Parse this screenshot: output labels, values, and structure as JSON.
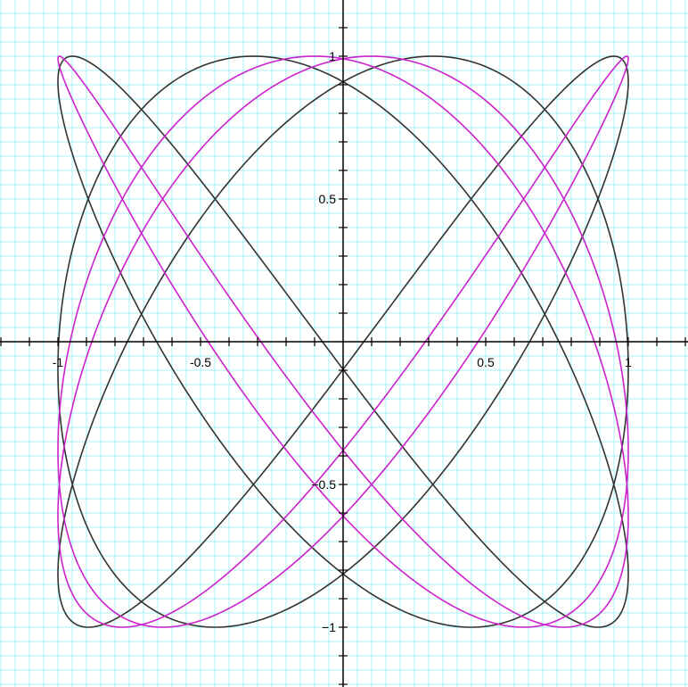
{
  "chart_data": {
    "type": "line",
    "title": "",
    "xlabel": "",
    "ylabel": "",
    "xlim": [
      -1.2,
      1.2
    ],
    "ylim": [
      -1.2,
      1.2
    ],
    "grid": true,
    "grid_minor_step": 0.05,
    "grid_color": "#aef2f2",
    "axis_color": "#000000",
    "x_ticks": [
      {
        "value": -1,
        "label": "-1"
      },
      {
        "value": -0.5,
        "label": "-0.5"
      },
      {
        "value": 0.5,
        "label": "0.5"
      },
      {
        "value": 1,
        "label": "1"
      }
    ],
    "y_ticks": [
      {
        "value": 1,
        "label": "1"
      },
      {
        "value": 0.5,
        "label": "0.5"
      },
      {
        "value": -0.5,
        "label": "−0.5"
      },
      {
        "value": -1,
        "label": "−1"
      }
    ],
    "series": [
      {
        "color": "#333333",
        "form": "x = cos(a·t + φx), y = cos(b·t)",
        "a": 3,
        "b": 4,
        "phase_x": 0.32,
        "samples": 1400
      },
      {
        "color": "#cc22cc",
        "form": "x = cos(a·t + φx), y = cos(b·t)",
        "a": 3,
        "b": 4,
        "phase_x": 0.1,
        "samples": 1400
      }
    ]
  }
}
